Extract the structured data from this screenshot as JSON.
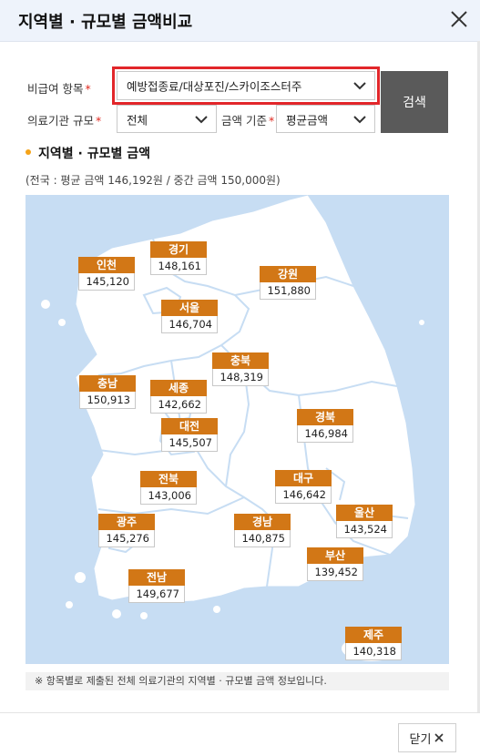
{
  "dialog": {
    "title": "지역별 · 규모별 금액비교"
  },
  "filters": {
    "item_label": "비급여 항목",
    "item_value": "예방접종료/대상포진/스카이조스터주",
    "institution_label": "의료기관 규모",
    "institution_value": "전체",
    "amount_label": "금액 기준",
    "amount_value": "평균금액",
    "required_mark": "*",
    "search_label": "검색"
  },
  "section": {
    "title": "지역별 · 규모별 금액",
    "summary": "(전국 : 평균 금액 146,192원 / 중간 금액 150,000원)"
  },
  "regions": [
    {
      "name": "인천",
      "value": "145,120"
    },
    {
      "name": "경기",
      "value": "148,161"
    },
    {
      "name": "강원",
      "value": "151,880"
    },
    {
      "name": "서울",
      "value": "146,704"
    },
    {
      "name": "충북",
      "value": "148,319"
    },
    {
      "name": "충남",
      "value": "150,913"
    },
    {
      "name": "세종",
      "value": "142,662"
    },
    {
      "name": "대전",
      "value": "145,507"
    },
    {
      "name": "경북",
      "value": "146,984"
    },
    {
      "name": "전북",
      "value": "143,006"
    },
    {
      "name": "대구",
      "value": "146,642"
    },
    {
      "name": "광주",
      "value": "145,276"
    },
    {
      "name": "경남",
      "value": "140,875"
    },
    {
      "name": "울산",
      "value": "143,524"
    },
    {
      "name": "부산",
      "value": "139,452"
    },
    {
      "name": "전남",
      "value": "149,677"
    },
    {
      "name": "제주",
      "value": "140,318"
    }
  ],
  "note": "※ 항목별로 제출된 전체 의료기관의 지역별 · 규모별 금액 정보입니다.",
  "footer": {
    "close_label": "닫기"
  },
  "colors": {
    "header_bg": "#eef3fb",
    "label_bg": "#d27716",
    "sea": "#c7ddf3",
    "land": "#ffffff",
    "highlight": "#e2262a",
    "search_btn": "#5a5a5a",
    "bullet": "#f5a318"
  },
  "icons": {
    "close": "close-icon",
    "dropdown": "chevron-down-icon"
  }
}
